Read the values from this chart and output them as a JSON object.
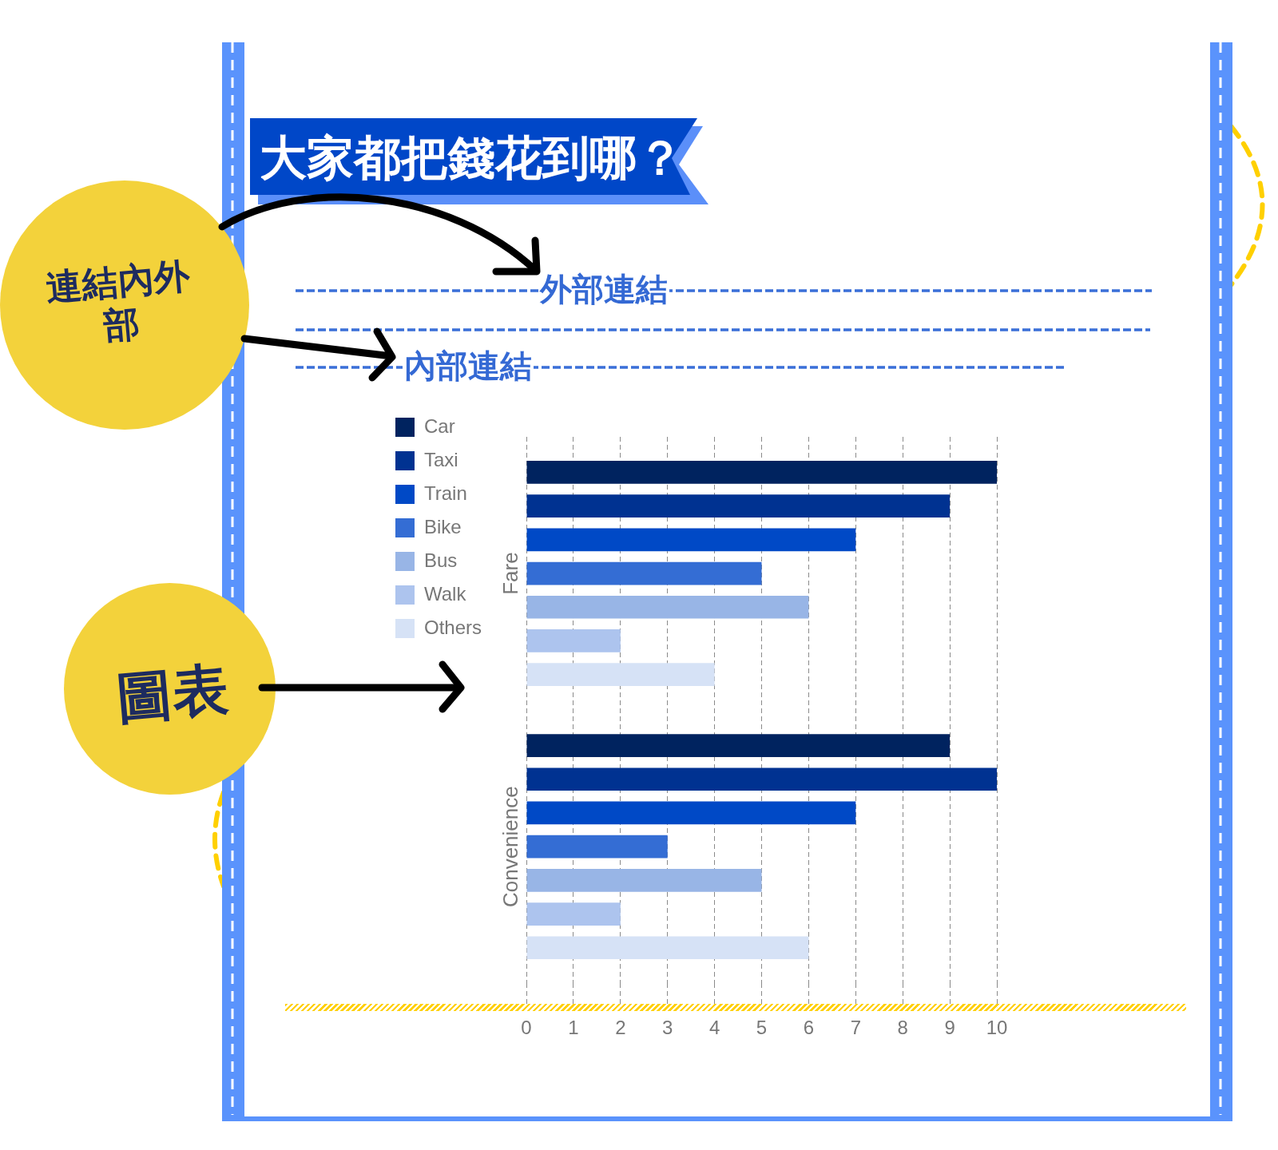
{
  "chart_data": {
    "type": "bar",
    "orientation": "horizontal",
    "title": "大家都把錢花到哪？",
    "categories": [
      "Fare",
      "Convenience"
    ],
    "series": [
      {
        "name": "Car",
        "color": "#00235f",
        "values": [
          10,
          9
        ]
      },
      {
        "name": "Taxi",
        "color": "#003291",
        "values": [
          9,
          10
        ]
      },
      {
        "name": "Train",
        "color": "#0049c6",
        "values": [
          7,
          7
        ]
      },
      {
        "name": "Bike",
        "color": "#346dd4",
        "values": [
          5,
          3
        ]
      },
      {
        "name": "Bus",
        "color": "#98b5e6",
        "values": [
          6,
          5
        ]
      },
      {
        "name": "Walk",
        "color": "#adc4ee",
        "values": [
          2,
          2
        ]
      },
      {
        "name": "Others",
        "color": "#d6e2f6",
        "values": [
          4,
          6
        ]
      }
    ],
    "xlim": [
      0,
      10
    ],
    "xticks": [
      0,
      1,
      2,
      3,
      4,
      5,
      6,
      7,
      8,
      9,
      10
    ],
    "grid": "x",
    "legend": "left",
    "annotations": [
      "連結內外部",
      "外部連結",
      "內部連結",
      "圖表"
    ]
  }
}
